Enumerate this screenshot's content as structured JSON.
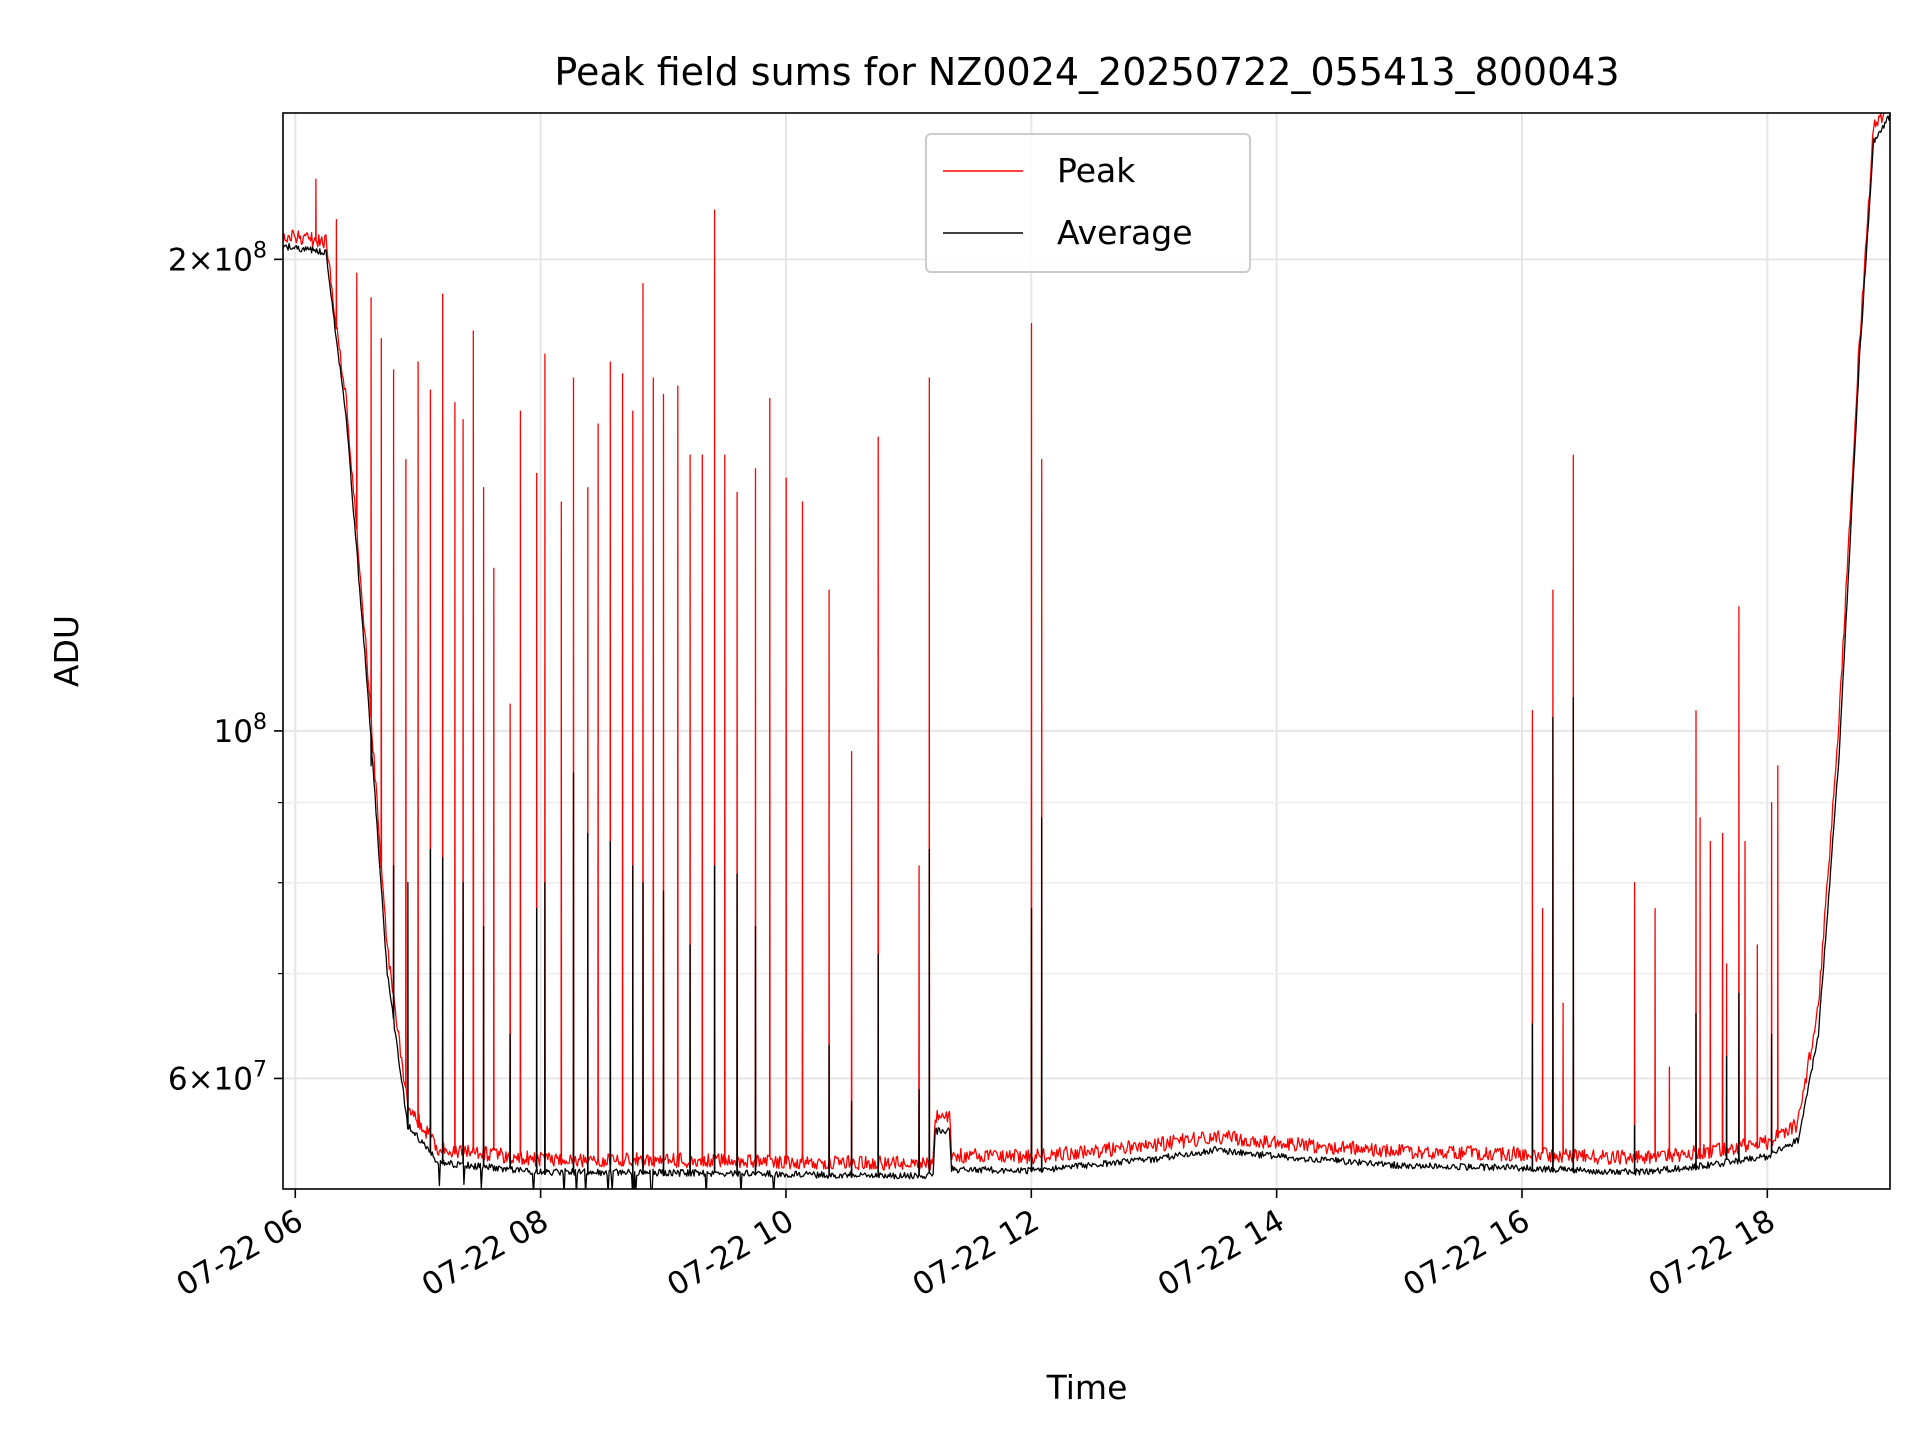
{
  "chart_data": {
    "type": "line",
    "title": "Peak field sums for NZ0024_20250722_055413_800043",
    "xlabel": "Time",
    "ylabel": "ADU",
    "yscale": "log",
    "xlim": [
      "2025-07-22T05:54",
      "2025-07-22T19:00"
    ],
    "ylim": [
      51000000,
      248000000
    ],
    "x_ticks": [
      "07-22 06",
      "07-22 08",
      "07-22 10",
      "07-22 12",
      "07-22 14",
      "07-22 16",
      "07-22 18"
    ],
    "y_ticks_major": [
      {
        "value": 60000000,
        "mantissa": "6",
        "exp": "7"
      },
      {
        "value": 100000000,
        "mantissa": "",
        "exp": "8"
      },
      {
        "value": 200000000,
        "mantissa": "2",
        "exp": "8"
      }
    ],
    "y_ticks_minor": [
      70000000,
      80000000,
      90000000
    ],
    "grid": true,
    "legend_position": "top-center",
    "series": [
      {
        "name": "Peak",
        "color": "#ff0000",
        "baseline": [
          [
            "05:54",
            205000000
          ],
          [
            "06:15",
            203000000
          ],
          [
            "06:25",
            160000000
          ],
          [
            "06:35",
            110000000
          ],
          [
            "06:45",
            72000000
          ],
          [
            "06:55",
            57000000
          ],
          [
            "07:10",
            53500000
          ],
          [
            "08:00",
            52700000
          ],
          [
            "09:30",
            52600000
          ],
          [
            "10:00",
            52500000
          ],
          [
            "11:00",
            52400000
          ],
          [
            "11:12",
            52400000
          ],
          [
            "11:13",
            56000000
          ],
          [
            "11:20",
            56200000
          ],
          [
            "11:21",
            53000000
          ],
          [
            "12:00",
            52900000
          ],
          [
            "13:00",
            53800000
          ],
          [
            "13:30",
            54500000
          ],
          [
            "14:00",
            54000000
          ],
          [
            "15:00",
            53300000
          ],
          [
            "16:00",
            53100000
          ],
          [
            "16:30",
            52900000
          ],
          [
            "17:00",
            52800000
          ],
          [
            "17:30",
            53300000
          ],
          [
            "18:00",
            54000000
          ],
          [
            "18:15",
            55500000
          ],
          [
            "18:25",
            66000000
          ],
          [
            "18:35",
            100000000
          ],
          [
            "18:45",
            175000000
          ],
          [
            "18:52",
            240000000
          ],
          [
            "19:00",
            248000000
          ]
        ],
        "spikes": [
          [
            "06:10",
            225000000
          ],
          [
            "06:20",
            212000000
          ],
          [
            "06:30",
            196000000
          ],
          [
            "06:37",
            189000000
          ],
          [
            "06:42",
            178000000
          ],
          [
            "06:48",
            170000000
          ],
          [
            "06:54",
            149000000
          ],
          [
            "07:00",
            172000000
          ],
          [
            "07:06",
            165000000
          ],
          [
            "07:12",
            190000000
          ],
          [
            "07:18",
            162000000
          ],
          [
            "07:22",
            158000000
          ],
          [
            "07:27",
            180000000
          ],
          [
            "07:32",
            143000000
          ],
          [
            "07:37",
            127000000
          ],
          [
            "07:45",
            104000000
          ],
          [
            "07:50",
            160000000
          ],
          [
            "07:58",
            146000000
          ],
          [
            "08:02",
            174000000
          ],
          [
            "08:10",
            140000000
          ],
          [
            "08:16",
            168000000
          ],
          [
            "08:23",
            143000000
          ],
          [
            "08:28",
            157000000
          ],
          [
            "08:34",
            172000000
          ],
          [
            "08:40",
            169000000
          ],
          [
            "08:45",
            160000000
          ],
          [
            "08:50",
            193000000
          ],
          [
            "08:55",
            168000000
          ],
          [
            "09:00",
            164000000
          ],
          [
            "09:07",
            166000000
          ],
          [
            "09:13",
            150000000
          ],
          [
            "09:19",
            150000000
          ],
          [
            "09:25",
            215000000
          ],
          [
            "09:30",
            150000000
          ],
          [
            "09:36",
            142000000
          ],
          [
            "09:45",
            147000000
          ],
          [
            "09:52",
            163000000
          ],
          [
            "10:00",
            145000000
          ],
          [
            "10:08",
            140000000
          ],
          [
            "10:21",
            123000000
          ],
          [
            "10:32",
            97000000
          ],
          [
            "10:45",
            154000000
          ],
          [
            "11:05",
            82000000
          ],
          [
            "11:10",
            168000000
          ],
          [
            "12:00",
            182000000
          ],
          [
            "12:05",
            149000000
          ],
          [
            "16:05",
            103000000
          ],
          [
            "16:10",
            77000000
          ],
          [
            "16:15",
            123000000
          ],
          [
            "16:20",
            67000000
          ],
          [
            "16:25",
            150000000
          ],
          [
            "16:55",
            80000000
          ],
          [
            "17:05",
            77000000
          ],
          [
            "17:12",
            61000000
          ],
          [
            "17:25",
            103000000
          ],
          [
            "17:27",
            88000000
          ],
          [
            "17:32",
            85000000
          ],
          [
            "17:38",
            86000000
          ],
          [
            "17:40",
            71000000
          ],
          [
            "17:46",
            120000000
          ],
          [
            "17:49",
            85000000
          ],
          [
            "17:55",
            73000000
          ],
          [
            "18:02",
            90000000
          ],
          [
            "18:05",
            95000000
          ]
        ]
      },
      {
        "name": "Average",
        "color": "#000000",
        "baseline": [
          [
            "05:54",
            204000000
          ],
          [
            "06:15",
            202000000
          ],
          [
            "06:25",
            158000000
          ],
          [
            "06:35",
            108000000
          ],
          [
            "06:45",
            70000000
          ],
          [
            "06:55",
            56000000
          ],
          [
            "07:10",
            53000000
          ],
          [
            "08:00",
            52300000
          ],
          [
            "09:30",
            52200000
          ],
          [
            "10:00",
            52100000
          ],
          [
            "11:00",
            52000000
          ],
          [
            "11:12",
            52000000
          ],
          [
            "11:13",
            55500000
          ],
          [
            "11:20",
            55600000
          ],
          [
            "11:21",
            52500000
          ],
          [
            "12:00",
            52400000
          ],
          [
            "13:00",
            53300000
          ],
          [
            "13:30",
            54000000
          ],
          [
            "14:00",
            53500000
          ],
          [
            "15:00",
            52800000
          ],
          [
            "16:00",
            52600000
          ],
          [
            "16:30",
            52400000
          ],
          [
            "17:00",
            52300000
          ],
          [
            "17:30",
            52800000
          ],
          [
            "18:00",
            53500000
          ],
          [
            "18:15",
            54800000
          ],
          [
            "18:25",
            64000000
          ],
          [
            "18:35",
            96000000
          ],
          [
            "18:45",
            172000000
          ],
          [
            "18:52",
            238000000
          ],
          [
            "19:00",
            247000000
          ]
        ],
        "spikes": [
          [
            "06:37",
            95000000
          ],
          [
            "06:48",
            82000000
          ],
          [
            "06:55",
            80000000
          ],
          [
            "07:06",
            84000000
          ],
          [
            "07:12",
            83000000
          ],
          [
            "07:22",
            80000000
          ],
          [
            "07:32",
            75000000
          ],
          [
            "07:45",
            64000000
          ],
          [
            "07:58",
            77000000
          ],
          [
            "08:02",
            80000000
          ],
          [
            "08:16",
            94000000
          ],
          [
            "08:23",
            86000000
          ],
          [
            "08:34",
            85000000
          ],
          [
            "08:45",
            82000000
          ],
          [
            "08:50",
            80000000
          ],
          [
            "09:00",
            79000000
          ],
          [
            "09:13",
            73000000
          ],
          [
            "09:25",
            82000000
          ],
          [
            "09:36",
            81000000
          ],
          [
            "09:45",
            75000000
          ],
          [
            "10:21",
            63000000
          ],
          [
            "10:32",
            58000000
          ],
          [
            "10:45",
            72000000
          ],
          [
            "11:05",
            59000000
          ],
          [
            "11:10",
            84000000
          ],
          [
            "12:00",
            77000000
          ],
          [
            "12:05",
            88000000
          ],
          [
            "16:05",
            65000000
          ],
          [
            "16:15",
            102000000
          ],
          [
            "16:25",
            105000000
          ],
          [
            "16:55",
            56000000
          ],
          [
            "17:25",
            66000000
          ],
          [
            "17:40",
            62000000
          ],
          [
            "17:46",
            68000000
          ],
          [
            "18:02",
            64000000
          ]
        ]
      }
    ]
  }
}
